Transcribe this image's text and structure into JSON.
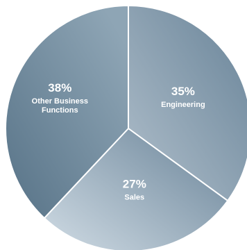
{
  "chart_data": {
    "type": "pie",
    "title": "",
    "slices": [
      {
        "label_lines": [
          "Engineering"
        ],
        "value": 35,
        "percent_text": "35%",
        "colors": {
          "light": "#a9b9c6",
          "dark": "#6f899d"
        }
      },
      {
        "label_lines": [
          "Sales"
        ],
        "value": 27,
        "percent_text": "27%",
        "colors": {
          "light": "#c6d3dd",
          "dark": "#7890a3"
        }
      },
      {
        "label_lines": [
          "Other Business",
          "Functions"
        ],
        "value": 38,
        "percent_text": "38%",
        "colors": {
          "light": "#8ea5b5",
          "dark": "#5d788c"
        }
      }
    ]
  }
}
